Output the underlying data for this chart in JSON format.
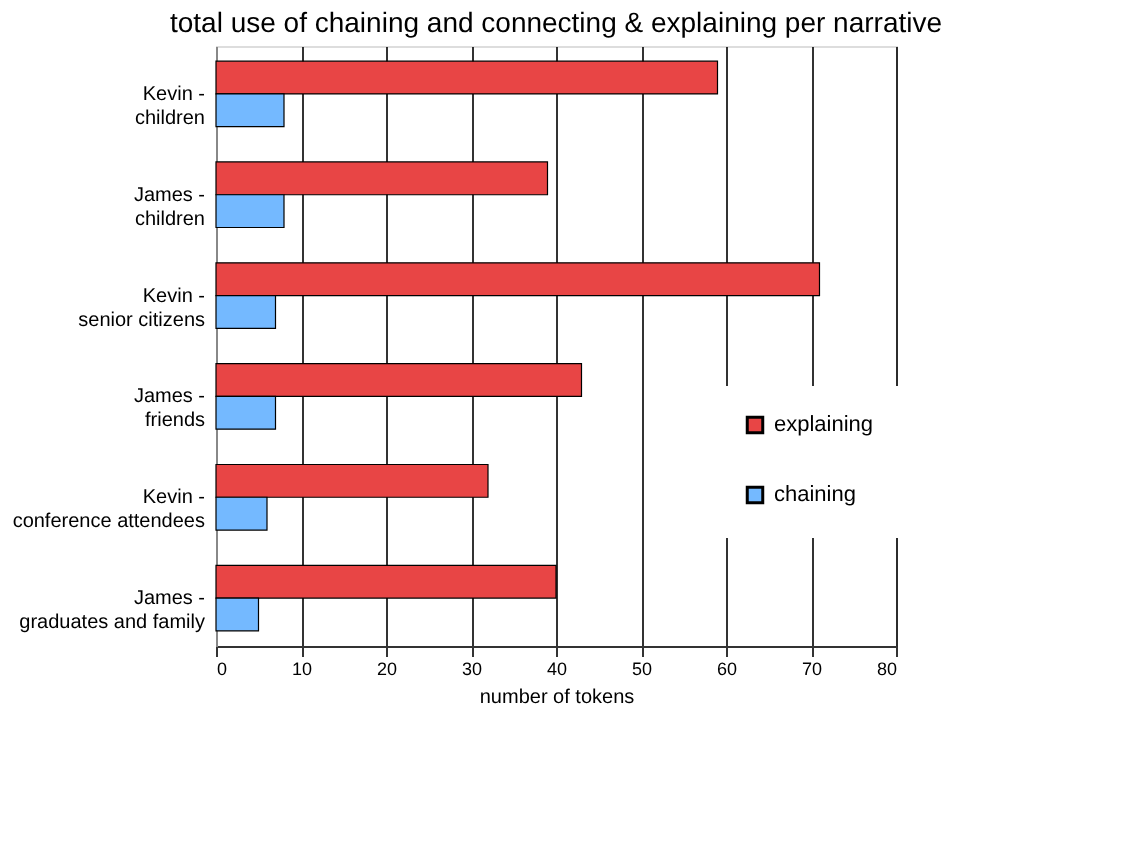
{
  "chart_data": {
    "type": "bar",
    "orientation": "horizontal",
    "title": "total use of chaining and connecting & explaining per narrative",
    "xlabel": "number of tokens",
    "categories": [
      "Kevin - children",
      "James - children",
      "Kevin - senior citizens",
      "James - friends",
      "Kevin - conference attendees",
      "James - graduates and family"
    ],
    "series": [
      {
        "name": "explaining",
        "color": "#e84545",
        "values": [
          59,
          39,
          71,
          43,
          32,
          40
        ]
      },
      {
        "name": "chaining",
        "color": "#74b9ff",
        "values": [
          8,
          8,
          7,
          7,
          6,
          5
        ]
      }
    ],
    "xlim": [
      0,
      80
    ],
    "xticks": [
      0,
      10,
      20,
      30,
      40,
      50,
      60,
      70,
      80
    ],
    "grid": "x",
    "legend": "bottom right"
  }
}
